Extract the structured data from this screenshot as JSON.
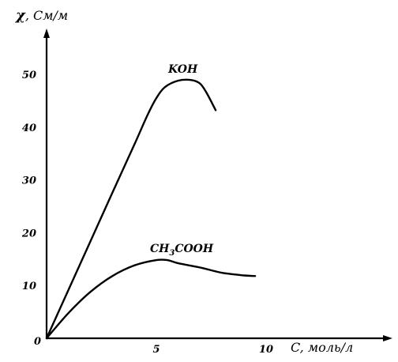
{
  "chart_data": {
    "type": "line",
    "xlabel": "C, моль/л",
    "ylabel_symbol": "χ",
    "ylabel_unit": ", См/м",
    "origin_label": "0",
    "xlim": [
      0,
      11.5
    ],
    "ylim": [
      0,
      57
    ],
    "x_ticks": [
      {
        "value": 5,
        "label": "5"
      },
      {
        "value": 10,
        "label": "10"
      }
    ],
    "y_ticks": [
      {
        "value": 10,
        "label": "10"
      },
      {
        "value": 20,
        "label": "20"
      },
      {
        "value": 30,
        "label": "30"
      },
      {
        "value": 40,
        "label": "40"
      },
      {
        "value": 50,
        "label": "50"
      }
    ],
    "series": [
      {
        "name": "KOH",
        "label_main": "KOH",
        "label_sub": "",
        "label_rest": "",
        "x": [
          0,
          1,
          2,
          3,
          4,
          4.6,
          5,
          5.4,
          6,
          6.6,
          7,
          7.3,
          7.7
        ],
        "y": [
          0,
          9.2,
          18.4,
          27.6,
          36.7,
          42.3,
          45.5,
          47.6,
          48.8,
          48.9,
          48.2,
          46.4,
          43.2
        ]
      },
      {
        "name": "CH3COOH",
        "label_main": "CH",
        "label_sub": "3",
        "label_rest": "COOH",
        "x": [
          0,
          1,
          2,
          3,
          4,
          5,
          5.5,
          6,
          7,
          8,
          9,
          9.5
        ],
        "y": [
          0,
          4.8,
          8.8,
          11.8,
          13.8,
          14.8,
          14.8,
          14.2,
          13.4,
          12.4,
          11.9,
          11.8
        ]
      }
    ]
  }
}
